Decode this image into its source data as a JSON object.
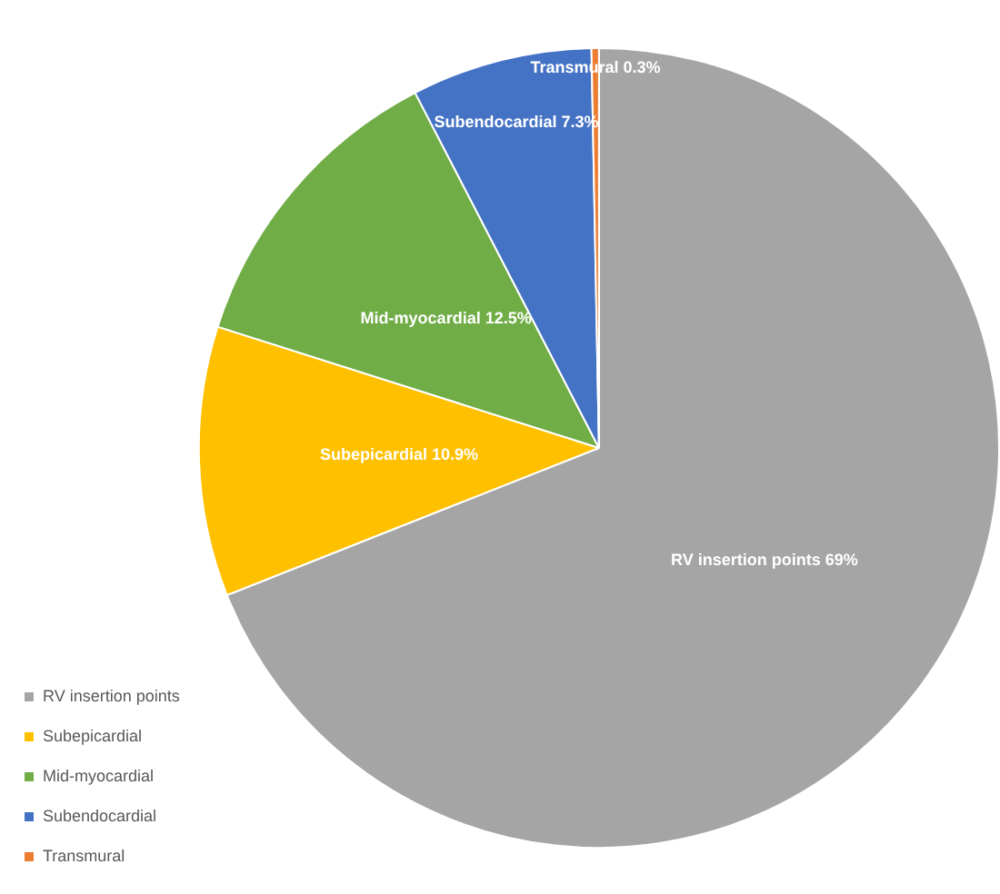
{
  "chart_data": {
    "type": "pie",
    "categories": [
      "RV insertion points",
      "Subepicardial",
      "Mid-myocardial",
      "Subendocardial",
      "Transmural"
    ],
    "values": [
      69,
      10.9,
      12.5,
      7.3,
      0.3
    ],
    "colors": [
      "#a5a5a5",
      "#ffc000",
      "#70ad47",
      "#4472c4",
      "#ed7d31"
    ],
    "value_labels": [
      "RV insertion points 69%",
      "Subepicardial 10.9%",
      "Mid-myocardial 12.5%",
      "Subendocardial 7.3%",
      "Transmural 0.3%"
    ],
    "legend": "bottom left"
  }
}
